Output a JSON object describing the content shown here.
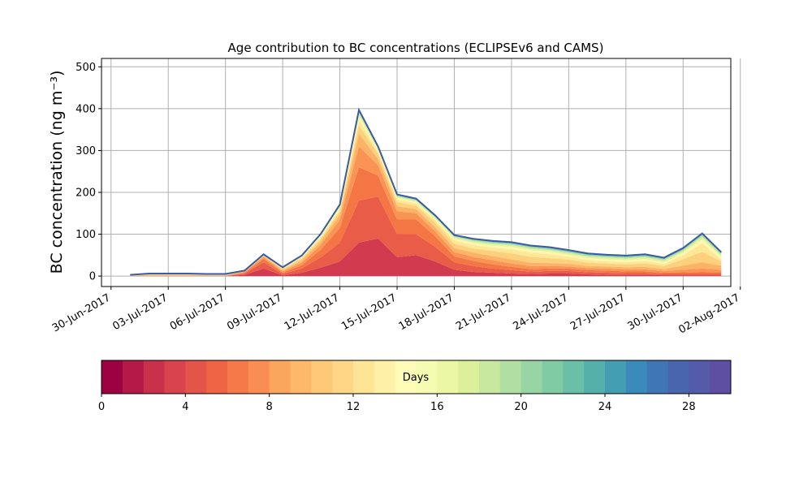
{
  "chart_data": {
    "type": "area",
    "title": "Age contribution to BC concentrations (ECLIPSEv6 and CAMS)",
    "xlabel": "",
    "ylabel": "BC concentration (ng m⁻³)",
    "ylim": [
      -25,
      520
    ],
    "xlim": [
      "2017-06-30T00:00",
      "2017-08-02T00:00"
    ],
    "grid": true,
    "x_tick_labels": [
      "30-Jun-2017",
      "03-Jul-2017",
      "06-Jul-2017",
      "09-Jul-2017",
      "12-Jul-2017",
      "15-Jul-2017",
      "18-Jul-2017",
      "21-Jul-2017",
      "24-Jul-2017",
      "27-Jul-2017",
      "30-Jul-2017",
      "02-Aug-2017"
    ],
    "y_ticks": [
      0,
      100,
      200,
      300,
      400,
      500
    ],
    "x": [
      "2017-07-01",
      "2017-07-02",
      "2017-07-03",
      "2017-07-04",
      "2017-07-05",
      "2017-07-06",
      "2017-07-07",
      "2017-07-08",
      "2017-07-09",
      "2017-07-10",
      "2017-07-11",
      "2017-07-12",
      "2017-07-13",
      "2017-07-14",
      "2017-07-15",
      "2017-07-16",
      "2017-07-17",
      "2017-07-18",
      "2017-07-19",
      "2017-07-20",
      "2017-07-21",
      "2017-07-22",
      "2017-07-23",
      "2017-07-24",
      "2017-07-25",
      "2017-07-26",
      "2017-07-27",
      "2017-07-28",
      "2017-07-29",
      "2017-07-30",
      "2017-07-31",
      "2017-08-01"
    ],
    "series": [
      {
        "values": [
          0,
          0,
          0,
          0,
          0,
          0,
          3,
          18,
          2,
          8,
          20,
          35,
          80,
          90,
          45,
          50,
          35,
          15,
          10,
          8,
          6,
          5,
          6,
          6,
          4,
          3,
          3,
          3,
          2,
          2,
          2,
          2
        ]
      },
      {
        "values": [
          0,
          0,
          0,
          0,
          0,
          0,
          3,
          15,
          3,
          10,
          25,
          45,
          100,
          100,
          55,
          50,
          35,
          18,
          14,
          10,
          8,
          6,
          6,
          6,
          5,
          5,
          4,
          4,
          3,
          3,
          3,
          3
        ]
      },
      {
        "values": [
          0,
          0,
          0,
          0,
          0,
          0,
          2,
          8,
          3,
          8,
          18,
          35,
          80,
          50,
          35,
          35,
          25,
          14,
          12,
          10,
          8,
          6,
          6,
          6,
          5,
          5,
          4,
          4,
          3,
          4,
          5,
          4
        ]
      },
      {
        "values": [
          1,
          1,
          1,
          1,
          1,
          1,
          2,
          4,
          3,
          6,
          12,
          20,
          50,
          25,
          20,
          15,
          12,
          10,
          10,
          10,
          8,
          7,
          6,
          5,
          5,
          5,
          5,
          5,
          4,
          6,
          8,
          6
        ]
      },
      {
        "values": [
          1,
          1,
          1,
          1,
          1,
          1,
          1,
          3,
          3,
          5,
          8,
          12,
          30,
          15,
          12,
          10,
          10,
          10,
          10,
          10,
          10,
          8,
          7,
          6,
          5,
          5,
          5,
          6,
          5,
          10,
          15,
          10
        ]
      },
      {
        "values": [
          1,
          2,
          2,
          2,
          1,
          1,
          1,
          2,
          3,
          5,
          6,
          8,
          20,
          12,
          10,
          8,
          10,
          10,
          10,
          12,
          14,
          14,
          12,
          10,
          8,
          7,
          7,
          8,
          7,
          15,
          25,
          10
        ]
      },
      {
        "values": [
          0,
          1,
          1,
          1,
          1,
          1,
          1,
          1,
          2,
          3,
          4,
          5,
          12,
          6,
          6,
          5,
          6,
          8,
          8,
          8,
          10,
          10,
          9,
          7,
          6,
          5,
          5,
          6,
          5,
          10,
          20,
          5
        ]
      },
      {
        "values": [
          0,
          1,
          1,
          1,
          1,
          1,
          0,
          1,
          1,
          2,
          3,
          4,
          10,
          4,
          4,
          4,
          4,
          5,
          5,
          5,
          6,
          6,
          6,
          5,
          5,
          5,
          5,
          5,
          4,
          6,
          10,
          6
        ]
      },
      {
        "values": [
          0,
          0,
          0,
          0,
          0,
          0,
          0,
          0,
          1,
          1,
          2,
          3,
          6,
          3,
          3,
          3,
          3,
          3,
          4,
          4,
          4,
          4,
          4,
          4,
          4,
          4,
          4,
          4,
          4,
          4,
          6,
          4
        ]
      },
      {
        "values": [
          0,
          0,
          0,
          0,
          0,
          0,
          0,
          0,
          0,
          1,
          1,
          2,
          4,
          2,
          2,
          2,
          2,
          2,
          3,
          3,
          3,
          3,
          3,
          3,
          3,
          3,
          3,
          3,
          3,
          3,
          4,
          3
        ]
      },
      {
        "values": [
          0,
          0,
          0,
          0,
          0,
          0,
          0,
          0,
          0,
          0,
          1,
          1,
          3,
          2,
          2,
          2,
          2,
          2,
          2,
          2,
          2,
          2,
          2,
          2,
          2,
          2,
          2,
          2,
          2,
          2,
          2,
          2
        ]
      },
      {
        "values": [
          0,
          0,
          0,
          0,
          0,
          0,
          0,
          0,
          0,
          0,
          1,
          1,
          2,
          1,
          1,
          1,
          1,
          1,
          1,
          2,
          2,
          2,
          2,
          2,
          2,
          2,
          2,
          2,
          2,
          2,
          2,
          2
        ]
      }
    ],
    "colorbar": {
      "label": "Days",
      "min": 0,
      "max": 30,
      "ticks": [
        0,
        4,
        8,
        12,
        16,
        20,
        24,
        28
      ],
      "colors": [
        "#9e0142",
        "#b41947",
        "#c9304c",
        "#d8434e",
        "#e4544a",
        "#ee6445",
        "#f67a49",
        "#fa8e52",
        "#fca55d",
        "#fdb869",
        "#fec877",
        "#fed686",
        "#fee596",
        "#fff1a8",
        "#fffbb8",
        "#f6fbb2",
        "#ebf7a4",
        "#dcf09b",
        "#c7e89e",
        "#b1dfa2",
        "#98d5a4",
        "#80cba4",
        "#6abfa6",
        "#55b0ab",
        "#439eb4",
        "#3a8bbb",
        "#3f77b4",
        "#4965ad",
        "#545ba9",
        "#5e4fa2"
      ]
    },
    "area_colors": [
      "#d23a4f",
      "#e95c47",
      "#f47645",
      "#f99455",
      "#fdb366",
      "#fdd07e",
      "#fee796",
      "#fff7b0",
      "#e3f39c",
      "#b7e1a1",
      "#7ccaa6",
      "#3b89bb"
    ],
    "outline_color": "#3b5ba5"
  }
}
